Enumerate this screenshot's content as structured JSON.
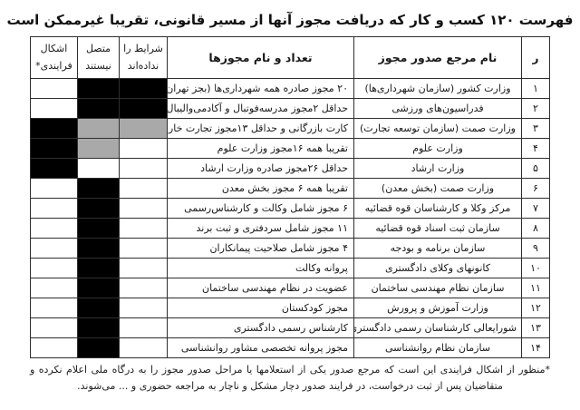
{
  "title": "فهرست ۱۲۰ کسب و کار که دریافت مجوز آنها از مسیر قانونی، تقریبا غیرممکن است",
  "table": {
    "headers": {
      "row": "ر",
      "authority": "نام مرجع صدور مجوز",
      "licenses": "تعداد و نام مجوزها",
      "conditions_line1": "شرایط را",
      "conditions_line2": "نداده‌اند",
      "connected_line1": "متصل",
      "connected_line2": "نیستند",
      "process_line1": "اشکال",
      "process_line2": "فرایندی*"
    },
    "status_colors": {
      "black": "#000000",
      "gray": "#a9a9a9",
      "white": "#ffffff"
    },
    "rows": [
      {
        "num": "۱",
        "authority": "وزارت کشور (سازمان شهرداری‌ها)",
        "licenses": "۲۰ مجوز صادره همه شهرداری‌ها (بجز تهران)",
        "conditions": "black",
        "connected": "black",
        "process": "white"
      },
      {
        "num": "۲",
        "authority": "فدراسیون‌های ورزشی",
        "licenses": "حداقل ۲مجوز مدرسه‌فوتبال و آکادمی‌والیبال",
        "conditions": "black",
        "connected": "black",
        "process": "white"
      },
      {
        "num": "۳",
        "authority": "وزارت صمت (سازمان توسعه تجارت)",
        "licenses": "کارت بازرگانی و حداقل ۱۳مجوز تجارت خارجی",
        "conditions": "gray",
        "connected": "gray",
        "process": "black"
      },
      {
        "num": "۴",
        "authority": "وزارت علوم",
        "licenses": "تقریبا همه ۱۶مجوز وزارت علوم",
        "conditions": "white",
        "connected": "gray",
        "process": "black"
      },
      {
        "num": "۵",
        "authority": "وزارت ارشاد",
        "licenses": "حداقل ۲۶مجوز صادره وزارت ارشاد",
        "conditions": "white",
        "connected": "white",
        "process": "black"
      },
      {
        "num": "۶",
        "authority": "وزارت صمت (بخش معدن)",
        "licenses": "تقریبا همه ۶ مجوز بخش معدن",
        "conditions": "white",
        "connected": "black",
        "process": "white"
      },
      {
        "num": "۷",
        "authority": "مرکز وکلا و کارشناسان قوه قضائیه",
        "licenses": "۶ مجوز شامل وکالت و کارشناس‌رسمی",
        "conditions": "white",
        "connected": "black",
        "process": "white"
      },
      {
        "num": "۸",
        "authority": "سازمان ثبت اسناد قوه قضائیه",
        "licenses": "۱۱ مجوز شامل سردفتری و ثبت برند",
        "conditions": "white",
        "connected": "black",
        "process": "white"
      },
      {
        "num": "۹",
        "authority": "سازمان برنامه و بودجه",
        "licenses": "۴ مجوز شامل صلاحیت پیمانکاران",
        "conditions": "white",
        "connected": "black",
        "process": "white"
      },
      {
        "num": "۱۰",
        "authority": "کانونهای وکلای دادگستری",
        "licenses": "پروانه وکالت",
        "conditions": "white",
        "connected": "black",
        "process": "white"
      },
      {
        "num": "۱۱",
        "authority": "سازمان نظام مهندسی ساختمان",
        "licenses": "عضویت در نظام مهندسی ساختمان",
        "conditions": "white",
        "connected": "black",
        "process": "white"
      },
      {
        "num": "۱۲",
        "authority": "وزارت آموزش و پرورش",
        "licenses": "مجوز کودکستان",
        "conditions": "white",
        "connected": "black",
        "process": "white"
      },
      {
        "num": "۱۳",
        "authority": "شورایعالی کارشناسان رسمی دادگستری",
        "licenses": "کارشناس رسمی دادگستری",
        "conditions": "white",
        "connected": "black",
        "process": "white"
      },
      {
        "num": "۱۴",
        "authority": "سازمان نظام روانشناسی",
        "licenses": "مجوز پروانه تخصصی مشاور روانشناسی",
        "conditions": "white",
        "connected": "black",
        "process": "white"
      }
    ]
  },
  "footnote": "*منظور از اشکال فرایندی این است که مرجع صدور یکی از استعلامها یا مراحل صدور مجوز را به درگاه ملی اعلام نکرده و متقاضیان پس از ثبت درخواست، در فرایند صدور دچار مشکل و ناچار به مراجعه حضوری و ... می‌شوند."
}
